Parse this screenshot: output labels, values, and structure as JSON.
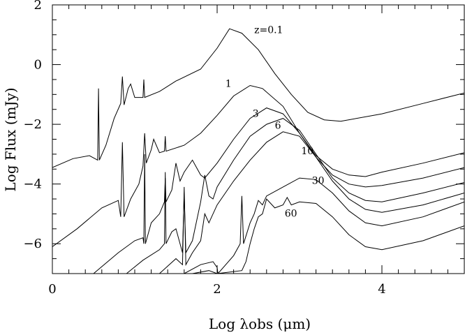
{
  "chart_data": {
    "type": "line",
    "title": "",
    "xlabel": "Log λobs (μm)",
    "ylabel": "Log Flux (mJy)",
    "xlim": [
      0,
      5
    ],
    "ylim": [
      -7,
      2
    ],
    "x_ticks": [
      0,
      2,
      4
    ],
    "y_ticks": [
      2,
      0,
      -2,
      -4,
      -6
    ],
    "x_minor_step": 0.2,
    "y_minor_step": 0.5,
    "grid": false,
    "legend": "none",
    "series": [
      {
        "name": "z=0.1",
        "label_at": [
          2.45,
          1.05
        ],
        "points": [
          [
            0,
            -3.45
          ],
          [
            0.25,
            -3.15
          ],
          [
            0.45,
            -3.05
          ],
          [
            0.55,
            -3.2
          ],
          [
            0.56,
            -0.8
          ],
          [
            0.57,
            -3.2
          ],
          [
            0.65,
            -2.7
          ],
          [
            0.75,
            -1.8
          ],
          [
            0.83,
            -1.3
          ],
          [
            0.85,
            -0.4
          ],
          [
            0.87,
            -1.35
          ],
          [
            0.92,
            -0.8
          ],
          [
            0.95,
            -0.65
          ],
          [
            1.0,
            -1.1
          ],
          [
            1.1,
            -1.1
          ],
          [
            1.11,
            -0.5
          ],
          [
            1.12,
            -1.1
          ],
          [
            1.3,
            -0.9
          ],
          [
            1.5,
            -0.55
          ],
          [
            1.8,
            -0.15
          ],
          [
            2.0,
            0.55
          ],
          [
            2.15,
            1.2
          ],
          [
            2.3,
            1.05
          ],
          [
            2.5,
            0.5
          ],
          [
            2.7,
            -0.3
          ],
          [
            2.9,
            -1.0
          ],
          [
            3.1,
            -1.6
          ],
          [
            3.3,
            -1.85
          ],
          [
            3.5,
            -1.9
          ],
          [
            4.0,
            -1.65
          ],
          [
            4.5,
            -1.3
          ],
          [
            5.0,
            -0.95
          ]
        ]
      },
      {
        "name": "1",
        "label_at": [
          2.1,
          -0.75
        ],
        "points": [
          [
            0,
            -6.1
          ],
          [
            0.3,
            -5.5
          ],
          [
            0.6,
            -4.8
          ],
          [
            0.8,
            -4.55
          ],
          [
            0.83,
            -5.1
          ],
          [
            0.85,
            -2.6
          ],
          [
            0.87,
            -5.1
          ],
          [
            0.95,
            -4.5
          ],
          [
            1.05,
            -4.0
          ],
          [
            1.1,
            -3.4
          ],
          [
            1.12,
            -2.3
          ],
          [
            1.14,
            -3.3
          ],
          [
            1.2,
            -2.85
          ],
          [
            1.23,
            -2.5
          ],
          [
            1.3,
            -2.95
          ],
          [
            1.36,
            -2.9
          ],
          [
            1.37,
            -2.4
          ],
          [
            1.38,
            -2.9
          ],
          [
            1.6,
            -2.7
          ],
          [
            1.8,
            -2.3
          ],
          [
            2.0,
            -1.7
          ],
          [
            2.2,
            -1.05
          ],
          [
            2.4,
            -0.7
          ],
          [
            2.55,
            -0.8
          ],
          [
            2.8,
            -1.4
          ],
          [
            3.0,
            -2.3
          ],
          [
            3.2,
            -3.05
          ],
          [
            3.4,
            -3.5
          ],
          [
            3.6,
            -3.7
          ],
          [
            3.8,
            -3.75
          ],
          [
            4.0,
            -3.6
          ],
          [
            4.5,
            -3.3
          ],
          [
            5.0,
            -2.95
          ]
        ]
      },
      {
        "name": "3",
        "label_at": [
          2.43,
          -1.75
        ],
        "points": [
          [
            0.5,
            -7.0
          ],
          [
            0.8,
            -6.3
          ],
          [
            1.0,
            -5.9
          ],
          [
            1.1,
            -5.8
          ],
          [
            1.11,
            -6.0
          ],
          [
            1.12,
            -3.0
          ],
          [
            1.13,
            -6.0
          ],
          [
            1.2,
            -5.3
          ],
          [
            1.3,
            -5.0
          ],
          [
            1.36,
            -4.6
          ],
          [
            1.37,
            -3.8
          ],
          [
            1.38,
            -4.6
          ],
          [
            1.45,
            -4.2
          ],
          [
            1.5,
            -3.3
          ],
          [
            1.55,
            -3.9
          ],
          [
            1.6,
            -3.6
          ],
          [
            1.7,
            -3.2
          ],
          [
            1.8,
            -3.7
          ],
          [
            1.85,
            -3.8
          ],
          [
            2.0,
            -3.3
          ],
          [
            2.2,
            -2.5
          ],
          [
            2.4,
            -1.8
          ],
          [
            2.6,
            -1.45
          ],
          [
            2.8,
            -1.65
          ],
          [
            3.0,
            -2.3
          ],
          [
            3.2,
            -3.1
          ],
          [
            3.4,
            -3.7
          ],
          [
            3.6,
            -4.0
          ],
          [
            3.8,
            -4.1
          ],
          [
            4.0,
            -4.05
          ],
          [
            4.5,
            -3.8
          ],
          [
            5.0,
            -3.45
          ]
        ]
      },
      {
        "name": "6",
        "label_at": [
          2.7,
          -2.15
        ],
        "points": [
          [
            0.9,
            -7.0
          ],
          [
            1.1,
            -6.55
          ],
          [
            1.3,
            -6.2
          ],
          [
            1.36,
            -6.0
          ],
          [
            1.37,
            -3.6
          ],
          [
            1.38,
            -6.0
          ],
          [
            1.45,
            -5.6
          ],
          [
            1.5,
            -5.5
          ],
          [
            1.58,
            -6.3
          ],
          [
            1.6,
            -4.3
          ],
          [
            1.62,
            -6.3
          ],
          [
            1.7,
            -5.9
          ],
          [
            1.8,
            -4.6
          ],
          [
            1.85,
            -3.7
          ],
          [
            1.9,
            -4.4
          ],
          [
            1.95,
            -4.5
          ],
          [
            2.0,
            -4.1
          ],
          [
            2.2,
            -3.2
          ],
          [
            2.4,
            -2.4
          ],
          [
            2.6,
            -2.0
          ],
          [
            2.8,
            -1.8
          ],
          [
            3.0,
            -2.2
          ],
          [
            3.2,
            -3.0
          ],
          [
            3.4,
            -3.8
          ],
          [
            3.6,
            -4.3
          ],
          [
            3.8,
            -4.55
          ],
          [
            4.0,
            -4.6
          ],
          [
            4.5,
            -4.3
          ],
          [
            5.0,
            -3.95
          ]
        ]
      },
      {
        "name": "10",
        "label_at": [
          3.02,
          -3.0
        ],
        "points": [
          [
            1.3,
            -7.0
          ],
          [
            1.5,
            -6.5
          ],
          [
            1.58,
            -6.7
          ],
          [
            1.6,
            -4.1
          ],
          [
            1.62,
            -6.7
          ],
          [
            1.7,
            -6.3
          ],
          [
            1.8,
            -5.9
          ],
          [
            1.85,
            -5.0
          ],
          [
            1.9,
            -5.3
          ],
          [
            2.0,
            -4.7
          ],
          [
            2.2,
            -3.9
          ],
          [
            2.4,
            -3.2
          ],
          [
            2.6,
            -2.6
          ],
          [
            2.8,
            -2.25
          ],
          [
            3.0,
            -2.4
          ],
          [
            3.2,
            -3.1
          ],
          [
            3.4,
            -3.9
          ],
          [
            3.6,
            -4.5
          ],
          [
            3.8,
            -4.85
          ],
          [
            4.0,
            -4.95
          ],
          [
            4.5,
            -4.7
          ],
          [
            5.0,
            -4.3
          ]
        ]
      },
      {
        "name": "30",
        "label_at": [
          3.15,
          -4.0
        ],
        "points": [
          [
            1.6,
            -7.0
          ],
          [
            1.8,
            -6.7
          ],
          [
            1.95,
            -6.6
          ],
          [
            2.0,
            -6.8
          ],
          [
            2.01,
            -7.0
          ],
          [
            2.2,
            -6.4
          ],
          [
            2.28,
            -6.0
          ],
          [
            2.3,
            -4.4
          ],
          [
            2.32,
            -6.0
          ],
          [
            2.4,
            -5.3
          ],
          [
            2.45,
            -5.0
          ],
          [
            2.5,
            -4.55
          ],
          [
            2.55,
            -4.7
          ],
          [
            2.6,
            -4.4
          ],
          [
            2.8,
            -4.1
          ],
          [
            3.0,
            -3.8
          ],
          [
            3.2,
            -3.85
          ],
          [
            3.4,
            -4.3
          ],
          [
            3.6,
            -4.9
          ],
          [
            3.8,
            -5.3
          ],
          [
            4.0,
            -5.4
          ],
          [
            4.5,
            -5.1
          ],
          [
            5.0,
            -4.6
          ]
        ]
      },
      {
        "name": "60",
        "label_at": [
          2.82,
          -5.1
        ],
        "points": [
          [
            1.7,
            -7.0
          ],
          [
            1.9,
            -6.9
          ],
          [
            2.0,
            -7.0
          ],
          [
            2.3,
            -6.9
          ],
          [
            2.35,
            -6.6
          ],
          [
            2.4,
            -6.0
          ],
          [
            2.45,
            -5.5
          ],
          [
            2.5,
            -5.1
          ],
          [
            2.55,
            -5.0
          ],
          [
            2.6,
            -4.5
          ],
          [
            2.7,
            -4.8
          ],
          [
            2.8,
            -4.7
          ],
          [
            2.85,
            -4.45
          ],
          [
            2.9,
            -4.7
          ],
          [
            3.0,
            -4.6
          ],
          [
            3.2,
            -4.65
          ],
          [
            3.4,
            -5.1
          ],
          [
            3.6,
            -5.7
          ],
          [
            3.8,
            -6.1
          ],
          [
            4.0,
            -6.2
          ],
          [
            4.5,
            -5.9
          ],
          [
            5.0,
            -5.4
          ]
        ]
      }
    ]
  }
}
